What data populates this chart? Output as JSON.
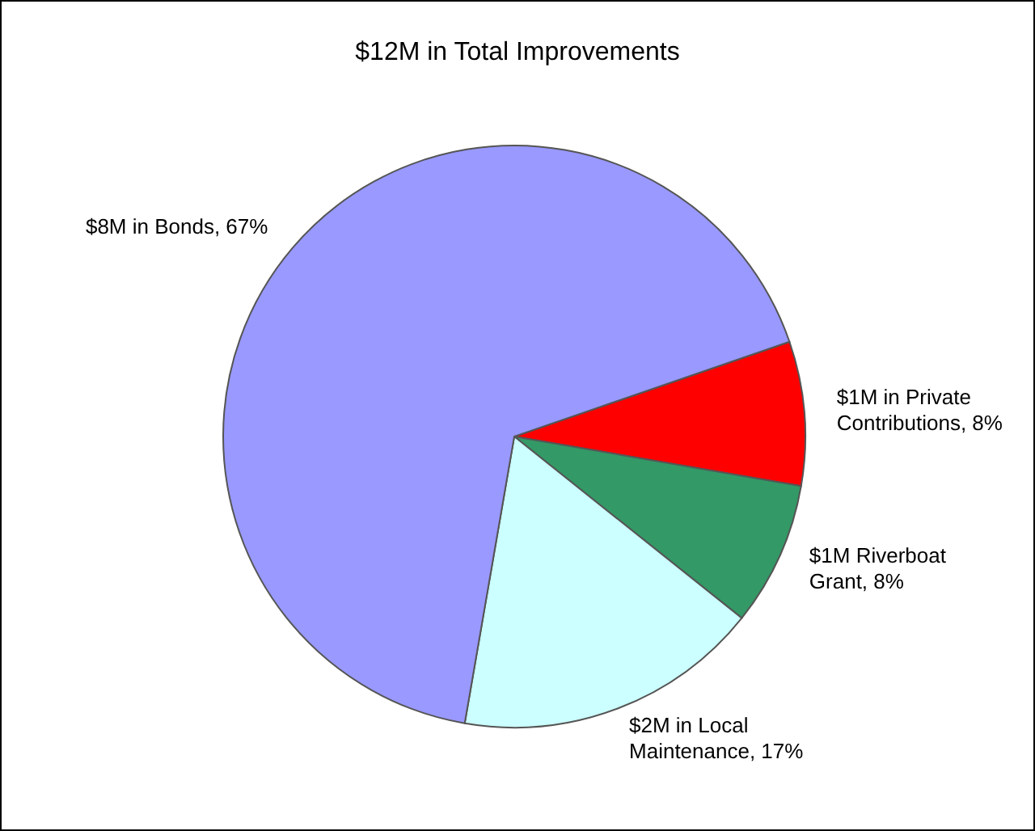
{
  "chart_data": {
    "type": "pie",
    "title": "$12M in Total Improvements",
    "categories": [
      "$1M in Private Contributions",
      "$1M Riverboat Grant",
      "$2M in Local Maintenance",
      "$8M in Bonds"
    ],
    "values": [
      8,
      8,
      17,
      67
    ],
    "colors": [
      "#ff0000",
      "#339966",
      "#ccffff",
      "#9999ff"
    ],
    "value_labels": [
      "8%",
      "8%",
      "17%",
      "67%"
    ]
  }
}
